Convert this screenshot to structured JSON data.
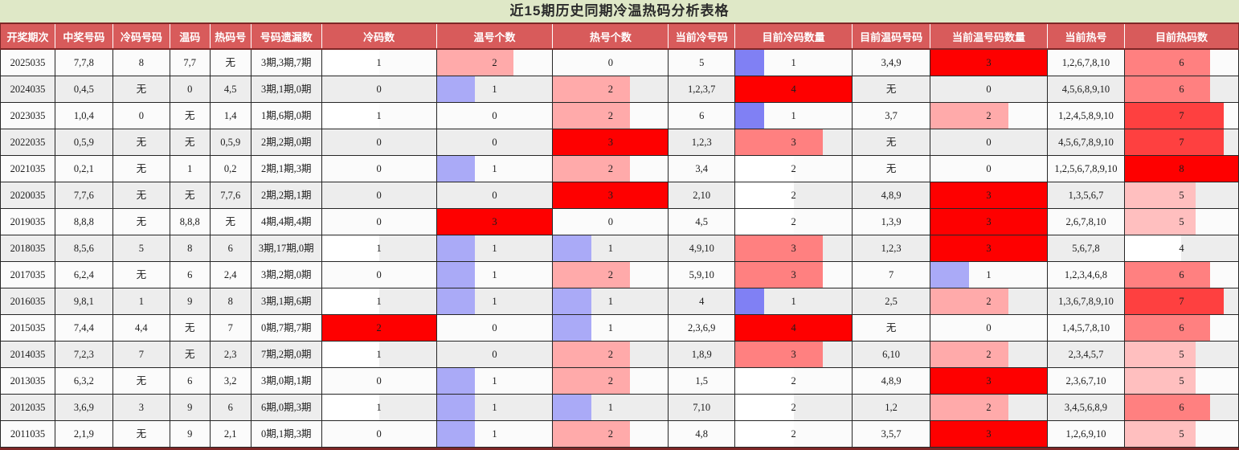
{
  "title": "近15期历史同期冷温热码分析表格",
  "colors": {
    "title_bg": "#dfe8c7",
    "title_text": "#2b2b2b",
    "header_bg": "#d85b5b",
    "header_text": "#ffffff",
    "header_divider": "#7e2727",
    "row_odd": "#fbfbfb",
    "row_even": "#ededed",
    "grid": "#262626",
    "body_text": "#1c1c1c",
    "bar_low": "#0000e8",
    "bar_mid": "#ffffff",
    "bar_high": "#fe0000",
    "bottom_strip": "#7e2727"
  },
  "table": {
    "columns": [
      {
        "key": "period",
        "label": "开奖期次",
        "w": 4.41,
        "bar": false
      },
      {
        "key": "win",
        "label": "中奖号码",
        "w": 4.67,
        "bar": false
      },
      {
        "key": "cold",
        "label": "冷码号码",
        "w": 4.6,
        "bar": false
      },
      {
        "key": "warm",
        "label": "温码",
        "w": 3.24,
        "bar": false
      },
      {
        "key": "hot",
        "label": "热码号",
        "w": 3.31,
        "bar": false
      },
      {
        "key": "miss",
        "label": "号码遗漏数",
        "w": 5.71,
        "bar": false
      },
      {
        "key": "coldCnt",
        "label": "冷码数",
        "w": 9.27,
        "bar": true
      },
      {
        "key": "warmCnt",
        "label": "温号个数",
        "w": 9.4,
        "bar": true
      },
      {
        "key": "hotCnt",
        "label": "热号个数",
        "w": 9.34,
        "bar": true
      },
      {
        "key": "curCold",
        "label": "当前冷号码",
        "w": 5.38,
        "bar": false
      },
      {
        "key": "curColdCnt",
        "label": "目前冷码数量",
        "w": 9.47,
        "bar": true
      },
      {
        "key": "curWarm",
        "label": "目前温码号码",
        "w": 6.29,
        "bar": false
      },
      {
        "key": "curWarmCnt",
        "label": "当前温号码数量",
        "w": 9.47,
        "bar": true
      },
      {
        "key": "curHot",
        "label": "当前热号",
        "w": 6.23,
        "bar": false
      },
      {
        "key": "curHotCnt",
        "label": "目前热码数",
        "w": 9.21,
        "bar": true
      }
    ],
    "rows": [
      [
        "2025035",
        "7,7,8",
        "8",
        "7,7",
        "无",
        "3期,3期,7期",
        1,
        2,
        0,
        "5",
        1,
        "3,4,9",
        3,
        "1,2,6,7,8,10",
        6
      ],
      [
        "2024035",
        "0,4,5",
        "无",
        "0",
        "4,5",
        "3期,1期,0期",
        0,
        1,
        2,
        "1,2,3,7",
        4,
        "无",
        0,
        "4,5,6,8,9,10",
        6
      ],
      [
        "2023035",
        "1,0,4",
        "0",
        "无",
        "1,4",
        "1期,6期,0期",
        1,
        0,
        2,
        "6",
        1,
        "3,7",
        2,
        "1,2,4,5,8,9,10",
        7
      ],
      [
        "2022035",
        "0,5,9",
        "无",
        "无",
        "0,5,9",
        "2期,2期,0期",
        0,
        0,
        3,
        "1,2,3",
        3,
        "无",
        0,
        "4,5,6,7,8,9,10",
        7
      ],
      [
        "2021035",
        "0,2,1",
        "无",
        "1",
        "0,2",
        "2期,1期,3期",
        0,
        1,
        2,
        "3,4",
        2,
        "无",
        0,
        "1,2,5,6,7,8,9,10",
        8
      ],
      [
        "2020035",
        "7,7,6",
        "无",
        "无",
        "7,7,6",
        "2期,2期,1期",
        0,
        0,
        3,
        "2,10",
        2,
        "4,8,9",
        3,
        "1,3,5,6,7",
        5
      ],
      [
        "2019035",
        "8,8,8",
        "无",
        "8,8,8",
        "无",
        "4期,4期,4期",
        0,
        3,
        0,
        "4,5",
        2,
        "1,3,9",
        3,
        "2,6,7,8,10",
        5
      ],
      [
        "2018035",
        "8,5,6",
        "5",
        "8",
        "6",
        "3期,17期,0期",
        1,
        1,
        1,
        "4,9,10",
        3,
        "1,2,3",
        3,
        "5,6,7,8",
        4
      ],
      [
        "2017035",
        "6,2,4",
        "无",
        "6",
        "2,4",
        "3期,2期,0期",
        0,
        1,
        2,
        "5,9,10",
        3,
        "7",
        1,
        "1,2,3,4,6,8",
        6
      ],
      [
        "2016035",
        "9,8,1",
        "1",
        "9",
        "8",
        "3期,1期,6期",
        1,
        1,
        1,
        "4",
        1,
        "2,5",
        2,
        "1,3,6,7,8,9,10",
        7
      ],
      [
        "2015035",
        "7,4,4",
        "4,4",
        "无",
        "7",
        "0期,7期,7期",
        2,
        0,
        1,
        "2,3,6,9",
        4,
        "无",
        0,
        "1,4,5,7,8,10",
        6
      ],
      [
        "2014035",
        "7,2,3",
        "7",
        "无",
        "2,3",
        "7期,2期,0期",
        1,
        0,
        2,
        "1,8,9",
        3,
        "6,10",
        2,
        "2,3,4,5,7",
        5
      ],
      [
        "2013035",
        "6,3,2",
        "无",
        "6",
        "3,2",
        "3期,0期,1期",
        0,
        1,
        2,
        "1,5",
        2,
        "4,8,9",
        3,
        "2,3,6,7,10",
        5
      ],
      [
        "2012035",
        "3,6,9",
        "3",
        "9",
        "6",
        "6期,0期,3期",
        1,
        1,
        1,
        "7,10",
        2,
        "1,2",
        2,
        "3,4,5,6,8,9",
        6
      ],
      [
        "2011035",
        "2,1,9",
        "无",
        "9",
        "2,1",
        "0期,1期,3期",
        0,
        1,
        2,
        "4,8",
        2,
        "3,5,7",
        3,
        "1,2,6,9,10",
        5
      ]
    ]
  }
}
